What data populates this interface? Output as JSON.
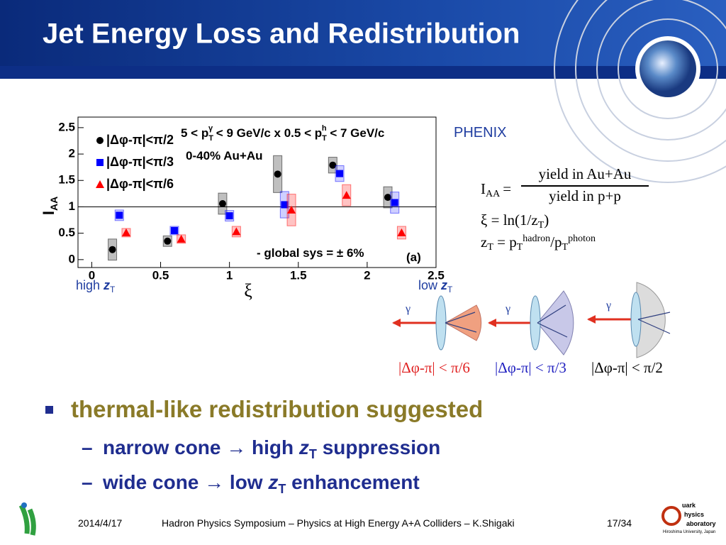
{
  "header": {
    "title": "Jet Energy Loss and Redistribution"
  },
  "chart_data": {
    "type": "scatter",
    "xlim": [
      -0.1,
      2.5
    ],
    "ylim": [
      -0.15,
      2.7
    ],
    "xticks": [
      0,
      0.5,
      1,
      1.5,
      2,
      2.5
    ],
    "yticks": [
      0,
      0.5,
      1,
      1.5,
      2,
      2.5
    ],
    "hline": 1,
    "xlabel": "ξ",
    "ylabel": "I",
    "ylabel_sub": "AA",
    "kinematics": [
      "5 < p",
      "T",
      "γ",
      " < 9 GeV/c x 0.5 < p",
      "T",
      "h",
      " < 7 GeV/c"
    ],
    "centrality": "0-40% Au+Au",
    "global_sys": "- global sys = ± 6%",
    "panel": "(a)",
    "series": [
      {
        "name": "|Δφ-π|<π/2",
        "color": "#000000",
        "marker": "circle",
        "x": [
          0.15,
          0.55,
          0.95,
          1.35,
          1.75,
          2.15
        ],
        "values": [
          0.19,
          0.35,
          1.06,
          1.62,
          1.79,
          1.18
        ],
        "sys": [
          0.2,
          0.1,
          0.2,
          0.35,
          0.15,
          0.2
        ]
      },
      {
        "name": "|Δφ-π|<π/3",
        "color": "#0000ff",
        "marker": "square",
        "x": [
          0.2,
          0.6,
          1.0,
          1.4,
          1.8,
          2.2
        ],
        "values": [
          0.84,
          0.55,
          0.83,
          1.04,
          1.63,
          1.08
        ],
        "sys": [
          0.1,
          0.08,
          0.1,
          0.25,
          0.15,
          0.2
        ]
      },
      {
        "name": "|Δφ-π|<π/6",
        "color": "#ff0000",
        "marker": "triangle",
        "x": [
          0.25,
          0.65,
          1.05,
          1.45,
          1.85,
          2.25
        ],
        "values": [
          0.51,
          0.39,
          0.53,
          0.94,
          1.22,
          0.51
        ],
        "sys": [
          0.08,
          0.08,
          0.1,
          0.3,
          0.2,
          0.12
        ]
      }
    ]
  },
  "labels": {
    "high": [
      "high ",
      "z",
      "T"
    ],
    "low": [
      "low ",
      "z",
      "T"
    ],
    "phenix": "PHENIX"
  },
  "formula": {
    "iaa": "I",
    "iaa_sub": "AA",
    "eq": "=",
    "num": "yield in Au+Au",
    "den": "yield in p+p",
    "xi": "ξ = ln(1/z",
    "xi_sub": "T",
    "xi_end": ")",
    "zt": "z",
    "zt_sub": "T",
    "zt_eq": " = p",
    "pt_sub": "T",
    "hadron": "hadron",
    "slash": "/p",
    "pt_sub2": "T",
    "photon": "photon"
  },
  "diagram": {
    "gamma": [
      "γ",
      "γ",
      "γ"
    ],
    "captions": [
      "|Δφ-π| < π/6",
      "|Δφ-π| < π/3",
      "|Δφ-π| < π/2"
    ]
  },
  "bullets": {
    "main": "thermal-like redistribution suggested",
    "sub": [
      [
        "narrow cone → high ",
        "z",
        "T",
        " suppression"
      ],
      [
        "wide cone → low ",
        "z",
        "T",
        " enhancement"
      ]
    ]
  },
  "footer": {
    "date": "2014/4/17",
    "event": "Hadron Physics Symposium – Physics at High Energy A+A Colliders – K.Shigaki",
    "page": "17/34",
    "lab": [
      "uark",
      "hysics",
      "aboratory"
    ],
    "univ": "Hiroshima University, Japan"
  }
}
